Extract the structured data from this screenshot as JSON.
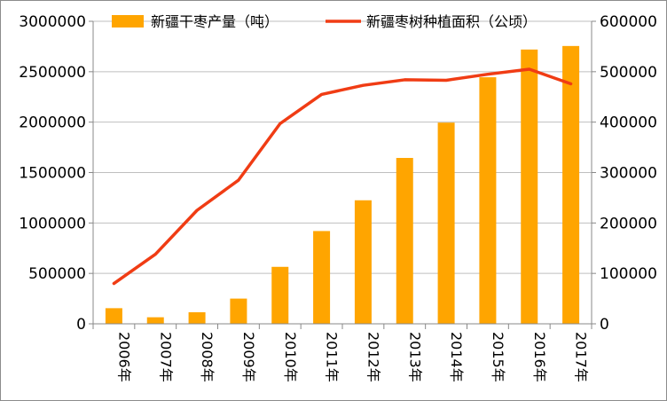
{
  "chart_data": {
    "type": "bar+line",
    "categories": [
      "2006年",
      "2007年",
      "2008年",
      "2009年",
      "2010年",
      "2011年",
      "2012年",
      "2013年",
      "2014年",
      "2015年",
      "2016年",
      "2017年"
    ],
    "series": [
      {
        "name": "新疆干枣产量（吨）",
        "type": "bar",
        "axis": "left",
        "color": "#FFA500",
        "values": [
          155000,
          65000,
          115000,
          250000,
          565000,
          920000,
          1225000,
          1645000,
          1995000,
          2445000,
          2720000,
          2755000
        ]
      },
      {
        "name": "新疆枣树种植面积（公顷）",
        "type": "line",
        "axis": "right",
        "color": "#F03C14",
        "values": [
          80000,
          138000,
          225000,
          285000,
          397000,
          455000,
          473000,
          484000,
          483000,
          495000,
          505000,
          476000
        ]
      }
    ],
    "y_left": {
      "ylim": [
        0,
        3000000
      ],
      "ticks": [
        "0",
        "500000",
        "1000000",
        "1500000",
        "2000000",
        "2500000",
        "3000000"
      ]
    },
    "y_right": {
      "ylim": [
        0,
        600000
      ],
      "ticks": [
        "0",
        "100000",
        "200000",
        "300000",
        "400000",
        "500000",
        "600000"
      ]
    },
    "legend_position": "top",
    "grid": "horizontal"
  }
}
